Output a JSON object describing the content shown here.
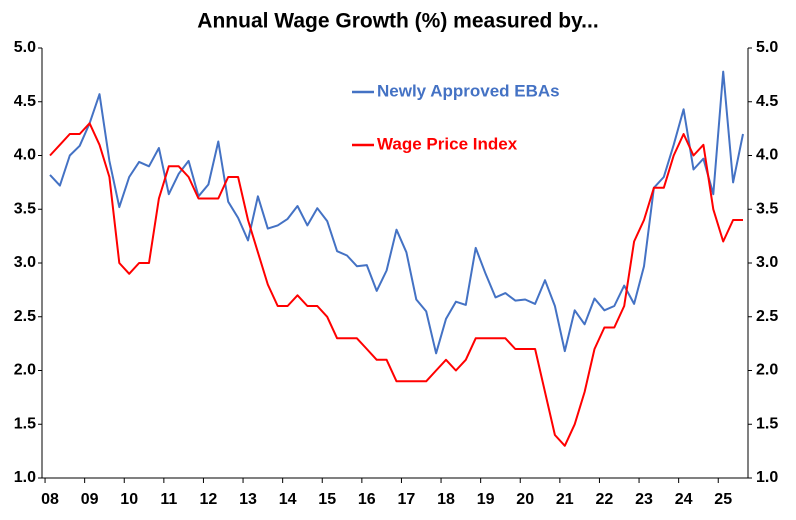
{
  "chart_data": {
    "type": "line",
    "title": "Annual Wage Growth (%) measured by...",
    "categories": [
      "08",
      null,
      null,
      null,
      "09",
      null,
      null,
      null,
      "10",
      null,
      null,
      null,
      "11",
      null,
      null,
      null,
      "12",
      null,
      null,
      null,
      "13",
      null,
      null,
      null,
      "14",
      null,
      null,
      null,
      "15",
      null,
      null,
      null,
      "16",
      null,
      null,
      null,
      "17",
      null,
      null,
      null,
      "18",
      null,
      null,
      null,
      "19",
      null,
      null,
      null,
      "20",
      null,
      null,
      null,
      "21",
      null,
      null,
      null,
      "22",
      null,
      null,
      null,
      "23",
      null,
      null,
      null,
      "24",
      null,
      null,
      null,
      "25",
      null,
      null
    ],
    "series": [
      {
        "name": "Newly Approved EBAs",
        "color": "#4472c4",
        "values": [
          3.82,
          3.72,
          4.0,
          4.09,
          4.3,
          4.57,
          3.95,
          3.52,
          3.8,
          3.94,
          3.9,
          4.07,
          3.64,
          3.83,
          3.95,
          3.62,
          3.73,
          4.13,
          3.57,
          3.42,
          3.21,
          3.62,
          3.32,
          3.35,
          3.41,
          3.53,
          3.35,
          3.51,
          3.39,
          3.11,
          3.07,
          2.97,
          2.98,
          2.74,
          2.93,
          3.31,
          3.1,
          2.66,
          2.55,
          2.16,
          2.48,
          2.64,
          2.61,
          3.14,
          2.9,
          2.68,
          2.72,
          2.65,
          2.66,
          2.62,
          2.84,
          2.6,
          2.18,
          2.56,
          2.43,
          2.67,
          2.56,
          2.6,
          2.79,
          2.62,
          2.97,
          3.7,
          3.8,
          4.1,
          4.43,
          3.87,
          3.97,
          3.64,
          4.78,
          3.75,
          4.2
        ]
      },
      {
        "name": "Wage Price Index",
        "color": "#ff0000",
        "values": [
          4.0,
          4.1,
          4.2,
          4.2,
          4.3,
          4.1,
          3.8,
          3.0,
          2.9,
          3.0,
          3.0,
          3.6,
          3.9,
          3.9,
          3.8,
          3.6,
          3.6,
          3.6,
          3.8,
          3.8,
          3.4,
          3.1,
          2.8,
          2.6,
          2.6,
          2.7,
          2.6,
          2.6,
          2.5,
          2.3,
          2.3,
          2.3,
          2.2,
          2.1,
          2.1,
          1.9,
          1.9,
          1.9,
          1.9,
          2.0,
          2.1,
          2.0,
          2.1,
          2.3,
          2.3,
          2.3,
          2.3,
          2.2,
          2.2,
          2.2,
          1.8,
          1.4,
          1.3,
          1.5,
          1.8,
          2.2,
          2.4,
          2.4,
          2.6,
          3.2,
          3.4,
          3.7,
          3.7,
          4.0,
          4.2,
          4.0,
          4.1,
          3.5,
          3.2,
          3.4,
          3.4
        ]
      }
    ],
    "ylim": [
      1,
      5
    ],
    "yticks": [
      {
        "value": 1,
        "label": "1.0"
      },
      {
        "value": 1.5,
        "label": "1.5"
      },
      {
        "value": 2,
        "label": "2.0"
      },
      {
        "value": 2.5,
        "label": "2.5"
      },
      {
        "value": 3,
        "label": "3.0"
      },
      {
        "value": 3.5,
        "label": "3.5"
      },
      {
        "value": 4,
        "label": "4.0"
      },
      {
        "value": 4.5,
        "label": "4.5"
      },
      {
        "value": 5,
        "label": "5.0"
      }
    ],
    "y2lim": [
      1,
      5
    ],
    "y2ticks": [
      {
        "value": 1,
        "label": "1.0"
      },
      {
        "value": 1.5,
        "label": "1.5"
      },
      {
        "value": 2,
        "label": "2.0"
      },
      {
        "value": 2.5,
        "label": "2.5"
      },
      {
        "value": 3,
        "label": "3.0"
      },
      {
        "value": 3.5,
        "label": "3.5"
      },
      {
        "value": 4,
        "label": "4.0"
      },
      {
        "value": 4.5,
        "label": "4.5"
      },
      {
        "value": 5,
        "label": "5.0"
      }
    ],
    "grid": false
  }
}
